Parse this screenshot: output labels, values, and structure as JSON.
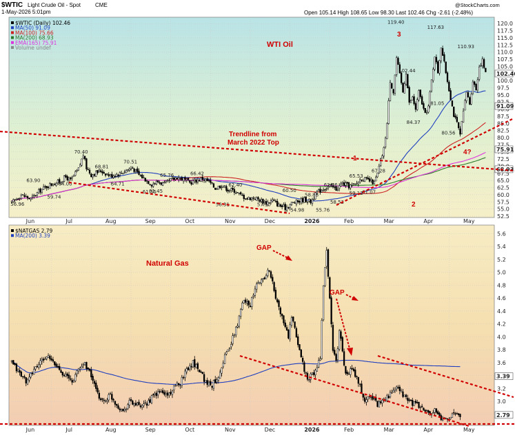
{
  "header": {
    "ticker": "$WTIC",
    "ticker_desc": "Light Crude Oil - Spot",
    "exchange": "CME",
    "date": "1-May-2026 5:01pm",
    "quote": "Open 105.14  High 108.65  Low 98.30  Last 102.46  Chg -2.61 (-2.48%)",
    "source": "@StockCharts.com"
  },
  "chart_data": [
    {
      "type": "candlestick",
      "title": "WTI Oil",
      "legend": [
        {
          "label": "$WTIC (Daily) 102.46",
          "color": "#000000"
        },
        {
          "label": "MA(50) 91.09",
          "color": "#1f3fbf"
        },
        {
          "label": "MA(100) 75.66",
          "color": "#cc2222"
        },
        {
          "label": "MA(200) 68.93",
          "color": "#2a7a2a"
        },
        {
          "label": "EMA(165) 75.91",
          "color": "#dd33dd"
        },
        {
          "label": "Volume undef",
          "color": "#888888"
        }
      ],
      "x_labels": [
        "Jun",
        "Jul",
        "Aug",
        "Sep",
        "Oct",
        "Nov",
        "Dec",
        "2026",
        "Feb",
        "Mar",
        "Apr",
        "May"
      ],
      "y_ticks": [
        "120.0",
        "117.5",
        "115.0",
        "112.5",
        "110.0",
        "107.5",
        "105.0",
        "102.5",
        "100.0",
        "97.5",
        "95.0",
        "92.5",
        "90.0",
        "87.5",
        "85.0",
        "82.5",
        "80.0",
        "77.5",
        "75.0",
        "72.5",
        "70.0",
        "67.5",
        "65.0",
        "62.5",
        "60.0",
        "57.5",
        "55.0",
        "52.5"
      ],
      "ylim": [
        52.5,
        121.5
      ],
      "price_path": [
        [
          0,
          57.2
        ],
        [
          6,
          60.0
        ],
        [
          12,
          58.5
        ],
        [
          18,
          61.6
        ],
        [
          24,
          63.5
        ],
        [
          30,
          64.6
        ],
        [
          34,
          66.2
        ],
        [
          37,
          65.0
        ],
        [
          42,
          69.0
        ],
        [
          45,
          74.0
        ],
        [
          47,
          69.5
        ],
        [
          50,
          67.0
        ],
        [
          56,
          68.4
        ],
        [
          62,
          66.7
        ],
        [
          68,
          67.5
        ],
        [
          73,
          68.9
        ],
        [
          76,
          69.4
        ],
        [
          80,
          67.0
        ],
        [
          84,
          65.4
        ],
        [
          88,
          63.7
        ],
        [
          92,
          64.6
        ],
        [
          96,
          63.7
        ],
        [
          100,
          65.0
        ],
        [
          104,
          66.2
        ],
        [
          108,
          65.4
        ],
        [
          112,
          64.2
        ],
        [
          116,
          65.0
        ],
        [
          120,
          65.7
        ],
        [
          124,
          64.6
        ],
        [
          128,
          62.3
        ],
        [
          132,
          63.4
        ],
        [
          136,
          61.8
        ],
        [
          140,
          61.5
        ],
        [
          144,
          59.8
        ],
        [
          148,
          58.7
        ],
        [
          152,
          59.0
        ],
        [
          156,
          58.2
        ],
        [
          160,
          57.2
        ],
        [
          164,
          58.0
        ],
        [
          168,
          56.3
        ],
        [
          172,
          55.4
        ],
        [
          176,
          57.0
        ],
        [
          180,
          57.6
        ],
        [
          184,
          58.4
        ],
        [
          188,
          57.6
        ],
        [
          192,
          60.8
        ],
        [
          196,
          62.2
        ],
        [
          200,
          63.0
        ],
        [
          204,
          62.0
        ],
        [
          208,
          64.0
        ],
        [
          212,
          63.0
        ],
        [
          216,
          63.5
        ],
        [
          220,
          65.8
        ],
        [
          224,
          65.0
        ],
        [
          228,
          64.2
        ],
        [
          230,
          67.3
        ],
        [
          232,
          72.0
        ],
        [
          234,
          76.0
        ],
        [
          236,
          85.0
        ],
        [
          238,
          100.0
        ],
        [
          240,
          96.0
        ],
        [
          242,
          108.0
        ],
        [
          244,
          102.0
        ],
        [
          246,
          96.0
        ],
        [
          248,
          103.0
        ],
        [
          250,
          92.0
        ],
        [
          252,
          94.0
        ],
        [
          254,
          90.0
        ],
        [
          256,
          96.0
        ],
        [
          258,
          92.0
        ],
        [
          260,
          88.0
        ],
        [
          262,
          91.0
        ],
        [
          264,
          100.0
        ],
        [
          266,
          109.0
        ],
        [
          268,
          103.0
        ],
        [
          270,
          112.0
        ],
        [
          272,
          106.0
        ],
        [
          274,
          100.0
        ],
        [
          276,
          94.0
        ],
        [
          278,
          88.0
        ],
        [
          280,
          85.0
        ],
        [
          282,
          81.0
        ],
        [
          284,
          89.0
        ],
        [
          286,
          96.0
        ],
        [
          288,
          92.0
        ],
        [
          290,
          100.0
        ],
        [
          292,
          97.0
        ],
        [
          294,
          105.0
        ],
        [
          296,
          107.0
        ],
        [
          298,
          102.5
        ]
      ],
      "labels": [
        {
          "text": "119.40",
          "x": 238,
          "y": 119.4
        },
        {
          "text": "117.63",
          "x": 263,
          "y": 117.6
        },
        {
          "text": "110.93",
          "x": 282,
          "y": 110.9
        },
        {
          "text": "102.44",
          "x": 245,
          "y": 102.4
        },
        {
          "text": "84.37",
          "x": 250,
          "y": 84.4
        },
        {
          "text": "81.05",
          "x": 265,
          "y": 91.0
        },
        {
          "text": "80.56",
          "x": 272,
          "y": 80.6
        },
        {
          "text": "70.40",
          "x": 41,
          "y": 74.0
        },
        {
          "text": "70.51",
          "x": 72,
          "y": 70.5
        },
        {
          "text": "68.81",
          "x": 54,
          "y": 68.8
        },
        {
          "text": "66.42",
          "x": 114,
          "y": 66.4
        },
        {
          "text": "65.76",
          "x": 95,
          "y": 65.8
        },
        {
          "text": "65.53",
          "x": 214,
          "y": 65.5
        },
        {
          "text": "67.28",
          "x": 228,
          "y": 67.3
        },
        {
          "text": "63.90",
          "x": 11,
          "y": 63.9
        },
        {
          "text": "64.00",
          "x": 31,
          "y": 62.8
        },
        {
          "text": "64.71",
          "x": 64,
          "y": 62.8
        },
        {
          "text": "62.40",
          "x": 138,
          "y": 62.4
        },
        {
          "text": "62.36",
          "x": 198,
          "y": 62.4
        },
        {
          "text": "60.50",
          "x": 172,
          "y": 60.5
        },
        {
          "text": "61.55",
          "x": 84,
          "y": 60.0
        },
        {
          "text": "61.45",
          "x": 88,
          "y": 60.2
        },
        {
          "text": "59.74",
          "x": 24,
          "y": 58.2
        },
        {
          "text": "58.88",
          "x": 186,
          "y": 58.9
        },
        {
          "text": "59.12",
          "x": 214,
          "y": 59.5
        },
        {
          "text": "61.07",
          "x": 222,
          "y": 59.9
        },
        {
          "text": "58.53",
          "x": 202,
          "y": 56.3
        },
        {
          "text": "56.96",
          "x": 1,
          "y": 55.6
        },
        {
          "text": "56.31",
          "x": 130,
          "y": 55.5
        },
        {
          "text": "57.10",
          "x": 156,
          "y": 55.5
        },
        {
          "text": "54.98",
          "x": 177,
          "y": 53.6
        },
        {
          "text": "55.76",
          "x": 193,
          "y": 53.6
        }
      ],
      "annotations": [
        {
          "text": "WTI Oil"
        },
        {
          "text": "Trendline from"
        },
        {
          "text": "March 2022 Top"
        },
        {
          "text": "1"
        },
        {
          "text": "2"
        },
        {
          "text": "3"
        },
        {
          "text": "4?"
        }
      ],
      "current_price_tag": "102.46",
      "ma50_tag": "91.09",
      "ma100_tag": "75.66",
      "ema165_tag": "75.91",
      "ma200_tag": "68.93"
    },
    {
      "type": "candlestick",
      "title": "Natural Gas",
      "legend": [
        {
          "label": "$NATGAS 2.79",
          "color": "#000000"
        },
        {
          "label": "MA(200) 3.39",
          "color": "#1f3fbf"
        }
      ],
      "x_labels": [
        "Jun",
        "Jul",
        "Aug",
        "Sep",
        "Oct",
        "Nov",
        "Dec",
        "2026",
        "Feb",
        "Mar",
        "Apr",
        "May"
      ],
      "y_ticks": [
        "5.6",
        "5.4",
        "5.2",
        "5.0",
        "4.8",
        "4.6",
        "4.4",
        "4.2",
        "4.0",
        "3.8",
        "3.6",
        "3.4",
        "3.2",
        "3.0",
        "2.8"
      ],
      "ylim": [
        2.65,
        5.7
      ],
      "price_path": [
        [
          0,
          3.6
        ],
        [
          6,
          3.4
        ],
        [
          10,
          3.3
        ],
        [
          14,
          3.5
        ],
        [
          18,
          3.6
        ],
        [
          22,
          3.7
        ],
        [
          26,
          3.6
        ],
        [
          30,
          3.5
        ],
        [
          34,
          3.4
        ],
        [
          38,
          3.3
        ],
        [
          42,
          3.5
        ],
        [
          46,
          3.6
        ],
        [
          50,
          3.4
        ],
        [
          54,
          3.1
        ],
        [
          58,
          3.0
        ],
        [
          62,
          3.1
        ],
        [
          66,
          2.95
        ],
        [
          70,
          2.85
        ],
        [
          74,
          3.0
        ],
        [
          78,
          2.95
        ],
        [
          82,
          2.9
        ],
        [
          86,
          3.0
        ],
        [
          90,
          3.1
        ],
        [
          94,
          3.15
        ],
        [
          98,
          3.1
        ],
        [
          102,
          3.2
        ],
        [
          106,
          3.3
        ],
        [
          110,
          3.5
        ],
        [
          114,
          3.6
        ],
        [
          118,
          3.5
        ],
        [
          122,
          3.3
        ],
        [
          126,
          3.25
        ],
        [
          130,
          3.4
        ],
        [
          134,
          3.7
        ],
        [
          138,
          3.9
        ],
        [
          142,
          4.2
        ],
        [
          146,
          4.6
        ],
        [
          150,
          4.5
        ],
        [
          154,
          4.8
        ],
        [
          158,
          4.9
        ],
        [
          162,
          5.05
        ],
        [
          166,
          4.6
        ],
        [
          170,
          4.3
        ],
        [
          174,
          4.0
        ],
        [
          176,
          4.3
        ],
        [
          180,
          3.9
        ],
        [
          184,
          3.5
        ],
        [
          186,
          3.3
        ],
        [
          188,
          3.4
        ],
        [
          192,
          3.5
        ],
        [
          194,
          3.7
        ],
        [
          196,
          4.8
        ],
        [
          198,
          5.3
        ],
        [
          200,
          4.6
        ],
        [
          202,
          3.8
        ],
        [
          204,
          3.6
        ],
        [
          206,
          4.1
        ],
        [
          208,
          3.8
        ],
        [
          210,
          3.4
        ],
        [
          214,
          3.5
        ],
        [
          218,
          3.3
        ],
        [
          222,
          3.0
        ],
        [
          226,
          3.1
        ],
        [
          230,
          2.95
        ],
        [
          234,
          3.05
        ],
        [
          238,
          3.1
        ],
        [
          242,
          3.2
        ],
        [
          246,
          3.1
        ],
        [
          250,
          3.0
        ],
        [
          254,
          2.95
        ],
        [
          258,
          2.9
        ],
        [
          262,
          2.8
        ],
        [
          266,
          2.85
        ],
        [
          270,
          2.72
        ],
        [
          274,
          2.75
        ],
        [
          278,
          2.8
        ],
        [
          282,
          2.79
        ]
      ],
      "annotations": [
        {
          "text": "Natural Gas"
        },
        {
          "text": "GAP"
        },
        {
          "text": "GAP"
        }
      ],
      "current_price_tag": "2.79",
      "ma200_tag": "3.39"
    }
  ]
}
